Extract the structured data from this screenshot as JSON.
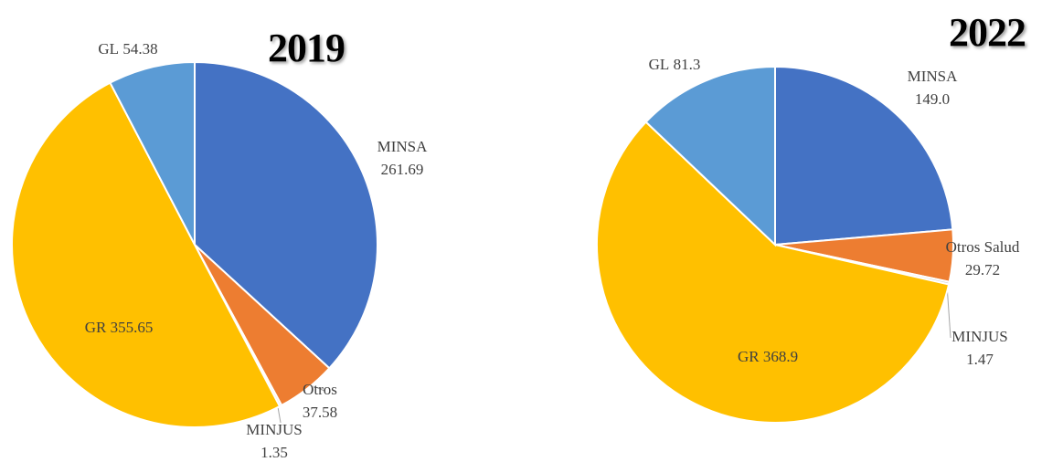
{
  "chart_data": [
    {
      "type": "pie",
      "title": "2019",
      "categories": [
        "MINSA",
        "Otros",
        "MINJUS",
        "GR",
        "GL"
      ],
      "values": [
        261.69,
        37.58,
        1.35,
        355.65,
        54.38
      ],
      "colors": [
        "#4472c4",
        "#ed7d31",
        "#d9d9d9",
        "#ffc000",
        "#5b9bd5"
      ]
    },
    {
      "type": "pie",
      "title": "2022",
      "categories": [
        "MINSA",
        "Otros Salud",
        "MINJUS",
        "GR",
        "GL"
      ],
      "values": [
        149.0,
        29.72,
        1.47,
        368.9,
        81.3
      ],
      "value_labels": [
        "149.0",
        "29.72",
        "1.47",
        "368.9",
        "81.3"
      ],
      "colors": [
        "#4472c4",
        "#ed7d31",
        "#d9d9d9",
        "#ffc000",
        "#5b9bd5"
      ]
    }
  ]
}
